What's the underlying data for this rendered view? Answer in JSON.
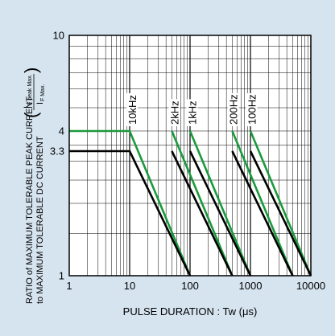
{
  "chart_data": {
    "type": "line",
    "xscale": "log",
    "yscale": "log",
    "xlim": [
      1,
      10000
    ],
    "ylim": [
      1,
      10
    ],
    "grid": true,
    "xlabel": "PULSE DURATION : Tw (μs)",
    "ylabel_line1": "RATIO of MAXIMUM TOLERABLE PEAK CURRENT",
    "ylabel_line2": "to MAXIMUM TOLERABLE DC CURRENT",
    "ylabel_ratio_numerator": "I",
    "ylabel_ratio_numerator_sub": "F peak Max.",
    "ylabel_ratio_denominator": "I",
    "ylabel_ratio_denominator_sub": "F Max.",
    "x_ticks": [
      "1",
      "10",
      "100",
      "1000",
      "10000"
    ],
    "y_ticks": [
      "1",
      "3.3",
      "4",
      "10"
    ],
    "colors": {
      "green": "#1a9a3c",
      "black": "#000000",
      "background": "#d6e4f0"
    },
    "frequency_labels": [
      {
        "text": "10kHz",
        "x": 11
      },
      {
        "text": "2kHz",
        "x": 55
      },
      {
        "text": "1kHz",
        "x": 108
      },
      {
        "text": "200Hz",
        "x": 520
      },
      {
        "text": "100Hz",
        "x": 1050
      }
    ],
    "series": [
      {
        "color": "green",
        "x": [
          1,
          10,
          100
        ],
        "y": [
          4,
          4,
          1
        ]
      },
      {
        "color": "green",
        "x": [
          50,
          500
        ],
        "y": [
          4,
          1
        ]
      },
      {
        "color": "green",
        "x": [
          100,
          1000
        ],
        "y": [
          4,
          1
        ]
      },
      {
        "color": "green",
        "x": [
          500,
          5000
        ],
        "y": [
          4,
          1
        ]
      },
      {
        "color": "green",
        "x": [
          1000,
          10000
        ],
        "y": [
          4,
          1
        ]
      },
      {
        "color": "black",
        "x": [
          1,
          10,
          100
        ],
        "y": [
          3.3,
          3.3,
          1
        ]
      },
      {
        "color": "black",
        "x": [
          50,
          500
        ],
        "y": [
          3.3,
          1
        ]
      },
      {
        "color": "black",
        "x": [
          100,
          1000
        ],
        "y": [
          3.3,
          1
        ]
      },
      {
        "color": "black",
        "x": [
          500,
          5000
        ],
        "y": [
          3.3,
          1
        ]
      },
      {
        "color": "black",
        "x": [
          1000,
          10000
        ],
        "y": [
          3.3,
          1
        ]
      }
    ]
  }
}
